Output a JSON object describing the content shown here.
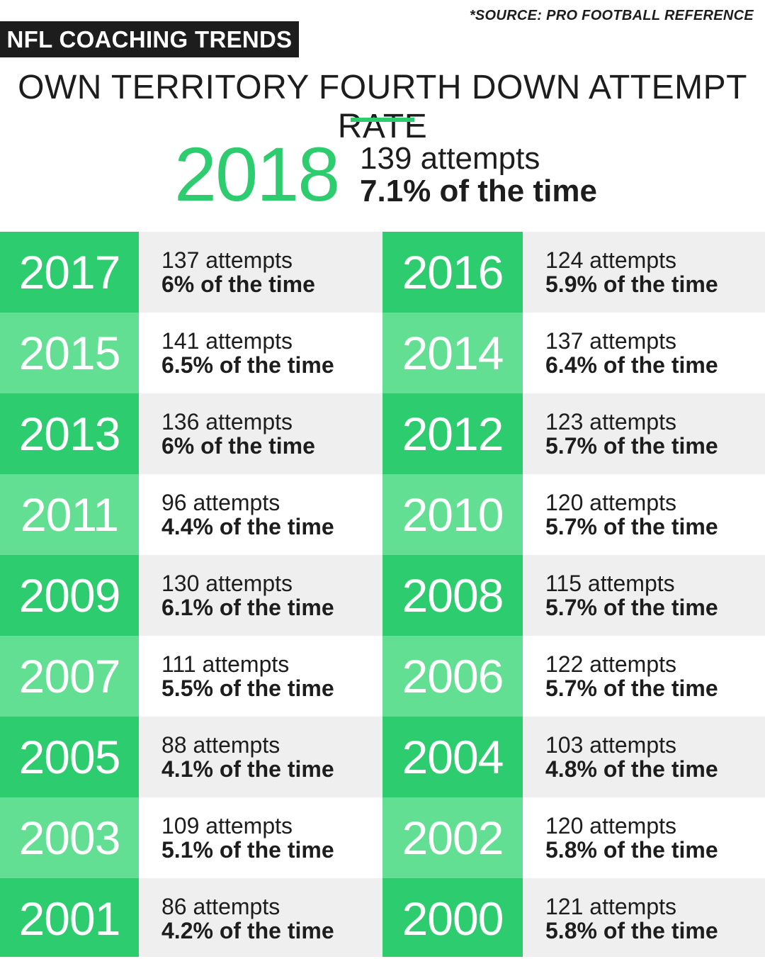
{
  "source": "*SOURCE: PRO FOOTBALL REFERENCE",
  "tag": "NFL COACHING TRENDS",
  "title": "OWN TERRITORY FOURTH DOWN ATTEMPT RATE",
  "colors": {
    "dark_green": "#2dcc6e",
    "light_green": "#63df93",
    "gray": "#efefef",
    "text": "#1d1d1d"
  },
  "hero": {
    "year": "2018",
    "attempts": "139 attempts",
    "rate": "7.1% of the time"
  },
  "rows": [
    {
      "left": {
        "year": "2017",
        "attempts": "137 attempts",
        "rate": "6% of the time"
      },
      "right": {
        "year": "2016",
        "attempts": "124 attempts",
        "rate": "5.9% of the time"
      }
    },
    {
      "left": {
        "year": "2015",
        "attempts": "141 attempts",
        "rate": "6.5% of the time"
      },
      "right": {
        "year": "2014",
        "attempts": "137 attempts",
        "rate": "6.4% of the time"
      }
    },
    {
      "left": {
        "year": "2013",
        "attempts": "136 attempts",
        "rate": "6% of the time"
      },
      "right": {
        "year": "2012",
        "attempts": "123 attempts",
        "rate": "5.7% of the time"
      }
    },
    {
      "left": {
        "year": "2011",
        "attempts": "96 attempts",
        "rate": "4.4% of the time"
      },
      "right": {
        "year": "2010",
        "attempts": "120 attempts",
        "rate": "5.7% of the time"
      }
    },
    {
      "left": {
        "year": "2009",
        "attempts": "130 attempts",
        "rate": "6.1% of the time"
      },
      "right": {
        "year": "2008",
        "attempts": "115 attempts",
        "rate": "5.7% of the time"
      }
    },
    {
      "left": {
        "year": "2007",
        "attempts": "111 attempts",
        "rate": "5.5% of the time"
      },
      "right": {
        "year": "2006",
        "attempts": "122 attempts",
        "rate": "5.7% of the time"
      }
    },
    {
      "left": {
        "year": "2005",
        "attempts": "88 attempts",
        "rate": "4.1% of the time"
      },
      "right": {
        "year": "2004",
        "attempts": "103 attempts",
        "rate": "4.8% of the time"
      }
    },
    {
      "left": {
        "year": "2003",
        "attempts": "109 attempts",
        "rate": "5.1% of the time"
      },
      "right": {
        "year": "2002",
        "attempts": "120 attempts",
        "rate": "5.8% of the time"
      }
    },
    {
      "left": {
        "year": "2001",
        "attempts": "86 attempts",
        "rate": "4.2% of the time"
      },
      "right": {
        "year": "2000",
        "attempts": "121 attempts",
        "rate": "5.8% of the time"
      }
    }
  ]
}
